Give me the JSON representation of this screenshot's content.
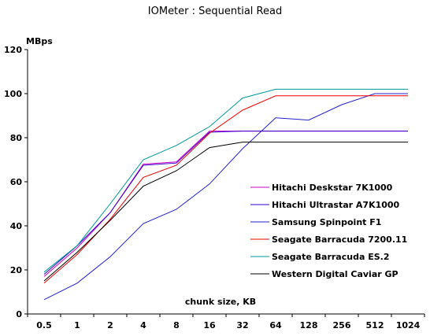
{
  "chart_data": {
    "type": "line",
    "title": "IOMeter : Sequential Read",
    "ylabel": "MBps",
    "xlabel": "chunk size, KB",
    "ylim": [
      0,
      120
    ],
    "yticks": [
      0,
      20,
      40,
      60,
      80,
      100,
      120
    ],
    "categories": [
      "0.5",
      "1",
      "2",
      "4",
      "8",
      "16",
      "32",
      "64",
      "128",
      "256",
      "512",
      "1024"
    ],
    "grid": false,
    "legend_position": "right",
    "series": [
      {
        "name": "Hitachi Deskstar 7K1000",
        "color": "#cc00cc",
        "values": [
          17,
          30,
          46,
          68,
          69,
          83,
          83,
          83,
          83,
          83,
          83,
          83
        ]
      },
      {
        "name": "Hitachi Ultrastar A7K1000",
        "color": "#3300cc",
        "values": [
          18,
          31,
          46,
          67.5,
          68.5,
          82.5,
          83,
          83,
          83,
          83,
          83,
          83
        ]
      },
      {
        "name": "Samsung Spinpoint F1",
        "color": "#2222cc",
        "values": [
          6.5,
          14,
          26,
          41,
          47.5,
          59,
          75,
          89,
          88,
          95,
          100,
          100
        ]
      },
      {
        "name": "Seagate Barracuda 7200.11",
        "color": "#ee0000",
        "values": [
          14,
          27,
          43,
          62,
          67.5,
          82,
          92.5,
          99,
          99,
          99,
          99,
          99
        ]
      },
      {
        "name": "Seagate Barracuda ES.2",
        "color": "#009999",
        "values": [
          19,
          31,
          50,
          70,
          76.5,
          85,
          98,
          102,
          102,
          102,
          102,
          102
        ]
      },
      {
        "name": "Western Digital Caviar GP",
        "color": "#000000",
        "values": [
          15,
          28,
          42.5,
          58,
          65,
          75.5,
          78,
          78,
          78,
          78,
          78,
          78
        ]
      }
    ]
  }
}
